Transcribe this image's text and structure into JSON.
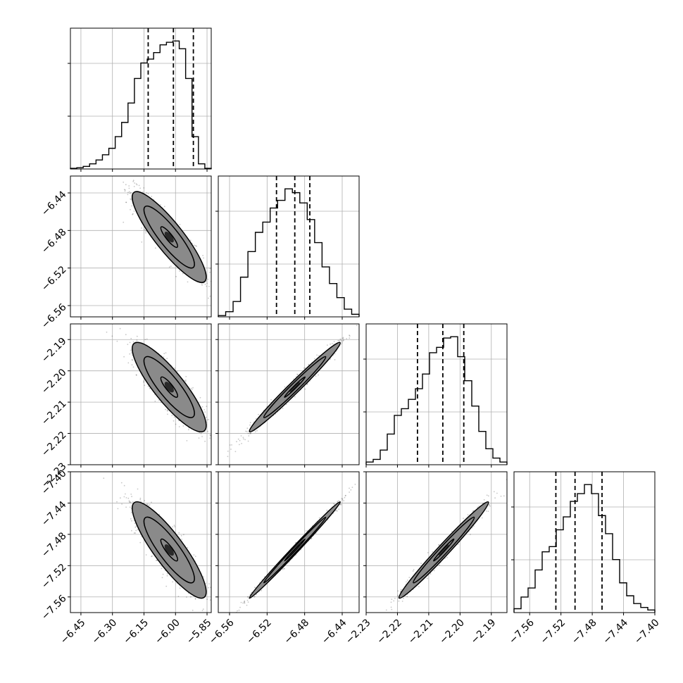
{
  "chart_data": {
    "type": "corner",
    "parameters": [
      {
        "range": [
          -6.5,
          -5.83
        ],
        "ticks": [
          -6.45,
          -6.3,
          -6.15,
          -6.0,
          -5.85
        ],
        "tick_labels": [
          "−6.45",
          "−6.30",
          "−6.15",
          "−6.00",
          "−5.85"
        ],
        "quantiles": [
          -6.13,
          -6.01,
          -5.915
        ]
      },
      {
        "range": [
          -6.572,
          -6.422
        ],
        "ticks": [
          -6.56,
          -6.52,
          -6.48,
          -6.44
        ],
        "tick_labels": [
          "−6.56",
          "−6.52",
          "−6.48",
          "−6.44"
        ],
        "quantiles": [
          -6.51,
          -6.4905,
          -6.4745
        ]
      },
      {
        "range": [
          -2.23,
          -2.185
        ],
        "ticks": [
          -2.23,
          -2.22,
          -2.21,
          -2.2,
          -2.19
        ],
        "tick_labels": [
          "−2.23",
          "−2.22",
          "−2.21",
          "−2.20",
          "−2.19"
        ],
        "quantiles": [
          -2.2136,
          -2.2055,
          -2.1988
        ]
      },
      {
        "range": [
          -7.58,
          -7.4
        ],
        "ticks": [
          -7.56,
          -7.52,
          -7.48,
          -7.44,
          -7.4
        ],
        "tick_labels": [
          "−7.56",
          "−7.52",
          "−7.48",
          "−7.44",
          "−7.40"
        ],
        "quantiles": [
          -7.5265,
          -7.502,
          -7.4675
        ]
      }
    ],
    "histograms": [
      [
        0.5,
        1,
        2,
        4,
        7,
        11,
        16,
        25,
        36,
        51,
        70,
        82,
        85,
        90,
        96,
        98,
        99,
        93,
        70,
        25,
        4,
        0.5
      ],
      [
        1,
        4,
        12,
        31,
        51,
        66,
        74,
        85,
        91,
        100,
        97,
        89,
        76,
        58,
        39,
        26,
        15,
        6,
        2
      ],
      [
        2,
        4,
        11,
        23,
        37,
        42,
        49,
        57,
        68,
        84,
        88,
        95,
        96,
        81,
        63,
        44,
        25,
        12,
        5,
        2
      ],
      [
        3,
        12,
        19,
        33,
        47,
        51,
        64,
        74,
        86,
        92,
        99,
        92,
        75,
        61,
        41,
        23,
        13,
        7,
        4,
        2
      ]
    ],
    "pairs": [
      {
        "x": 0,
        "y": 1,
        "center": [
          -6.03,
          -6.487
        ],
        "sd": [
          0.08,
          0.022
        ],
        "rho": -0.88
      },
      {
        "x": 0,
        "y": 2,
        "center": [
          -6.03,
          -2.2052
        ],
        "sd": [
          0.08,
          0.0065
        ],
        "rho": -0.86
      },
      {
        "x": 1,
        "y": 2,
        "center": [
          -6.4905,
          -2.2052
        ],
        "sd": [
          0.022,
          0.0065
        ],
        "rho": 0.985
      },
      {
        "x": 0,
        "y": 3,
        "center": [
          -6.03,
          -7.5
        ],
        "sd": [
          0.08,
          0.028
        ],
        "rho": -0.87
      },
      {
        "x": 1,
        "y": 3,
        "center": [
          -6.4905,
          -7.5
        ],
        "sd": [
          0.022,
          0.028
        ],
        "rho": 0.995
      },
      {
        "x": 2,
        "y": 3,
        "center": [
          -2.2052,
          -7.5
        ],
        "sd": [
          0.0065,
          0.028
        ],
        "rho": 0.985
      }
    ],
    "grid": true,
    "contour_levels": [
      0.5,
      1.5,
      2.2
    ]
  }
}
